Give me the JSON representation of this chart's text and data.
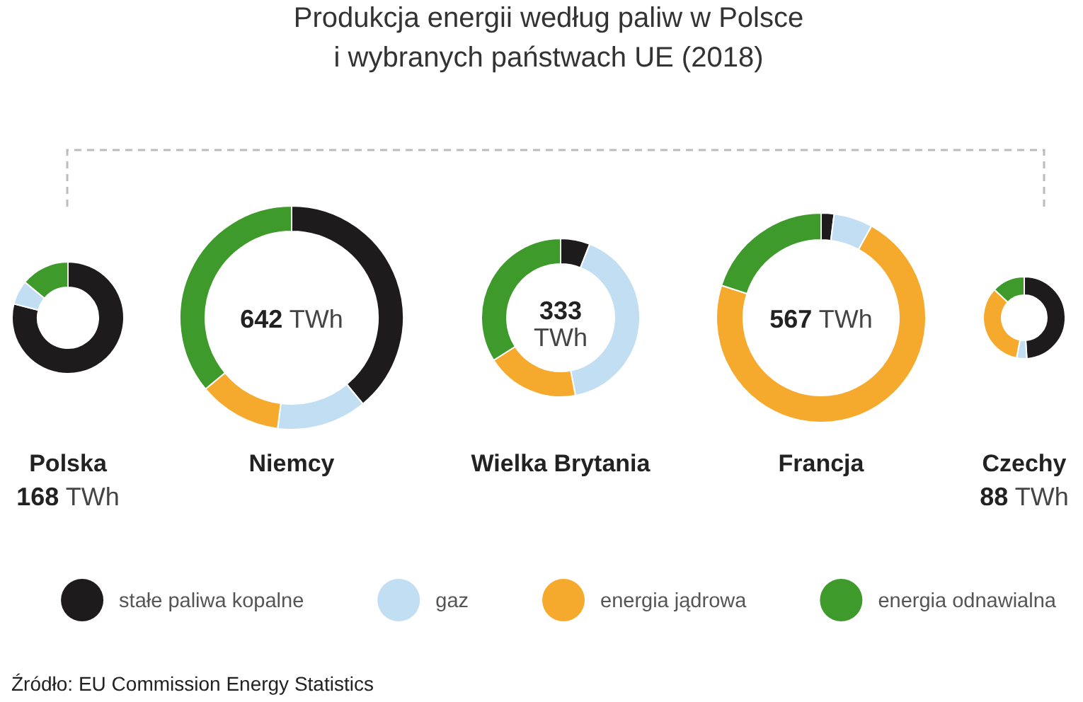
{
  "chart_data": {
    "type": "donut",
    "title": "Produkcja energii według paliw w Polsce\ni wybranych państwach UE (2018)",
    "categories": [
      "stałe paliwa kopalne",
      "gaz",
      "energia jądrowa",
      "energia odnawialna"
    ],
    "colors": [
      "#1d1b1c",
      "#c2def2",
      "#f6aa2d",
      "#3e9a2b"
    ],
    "series": [
      {
        "name": "Polska",
        "values": [
          79,
          7,
          0,
          14
        ]
      },
      {
        "name": "Niemcy",
        "values": [
          39,
          13,
          12,
          36
        ]
      },
      {
        "name": "Wielka Brytania",
        "values": [
          6,
          41,
          19,
          34
        ]
      },
      {
        "name": "Francja",
        "values": [
          2,
          6,
          72,
          20
        ]
      },
      {
        "name": "Czechy",
        "values": [
          49,
          4,
          34,
          13
        ]
      }
    ],
    "annotations": [
      "168 TWh",
      "642 TWh",
      "333 TWh",
      "567 TWh",
      "88 TWh",
      "Źródło: EU Commission Energy Statistics"
    ],
    "legend": "bottom"
  }
}
